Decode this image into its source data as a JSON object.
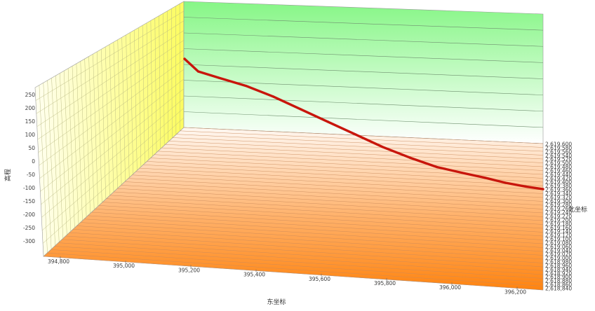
{
  "chart_data": {
    "type": "line",
    "view": "3d",
    "xlabel": "东坐标",
    "ylabel": "北坐标",
    "zlabel": "高程",
    "x_ticks": [
      "394,800",
      "395,000",
      "395,200",
      "395,400",
      "395,600",
      "395,800",
      "396,000",
      "396,200"
    ],
    "y_ticks": [
      "2,618,840",
      "2,618,860",
      "2,618,880",
      "2,618,900",
      "2,618,920",
      "2,618,940",
      "2,618,960",
      "2,618,980",
      "2,619,000",
      "2,619,020",
      "2,619,040",
      "2,619,060",
      "2,619,080",
      "2,619,100",
      "2,619,120",
      "2,619,140",
      "2,619,160",
      "2,619,180",
      "2,619,200",
      "2,619,220",
      "2,619,240",
      "2,619,260",
      "2,619,280",
      "2,619,300",
      "2,619,320",
      "2,619,340",
      "2,619,360",
      "2,619,380",
      "2,619,400",
      "2,619,420",
      "2,619,440",
      "2,619,460",
      "2,619,480",
      "2,619,500",
      "2,619,520",
      "2,619,540",
      "2,619,560",
      "2,619,580",
      "2,619,600"
    ],
    "z_ticks": [
      "250",
      "200",
      "150",
      "100",
      "50",
      "0",
      "-50",
      "-100",
      "-150",
      "-200",
      "-250",
      "-300"
    ],
    "series": [
      {
        "color": "#c8160c",
        "points": [
          [
            395220,
            275
          ],
          [
            395260,
            255
          ],
          [
            395320,
            245
          ],
          [
            395400,
            232
          ],
          [
            395480,
            215
          ],
          [
            395560,
            195
          ],
          [
            395640,
            175
          ],
          [
            395720,
            155
          ],
          [
            395800,
            135
          ],
          [
            395880,
            118
          ],
          [
            395960,
            103
          ],
          [
            396040,
            93
          ],
          [
            396100,
            86
          ],
          [
            396160,
            78
          ],
          [
            396220,
            72
          ],
          [
            396270,
            68
          ]
        ]
      }
    ],
    "colors": {
      "side_wall": "#fcfc68",
      "back_wall": "#8cf78c",
      "floor": "#ff8c1a",
      "series": "#c8160c"
    }
  }
}
